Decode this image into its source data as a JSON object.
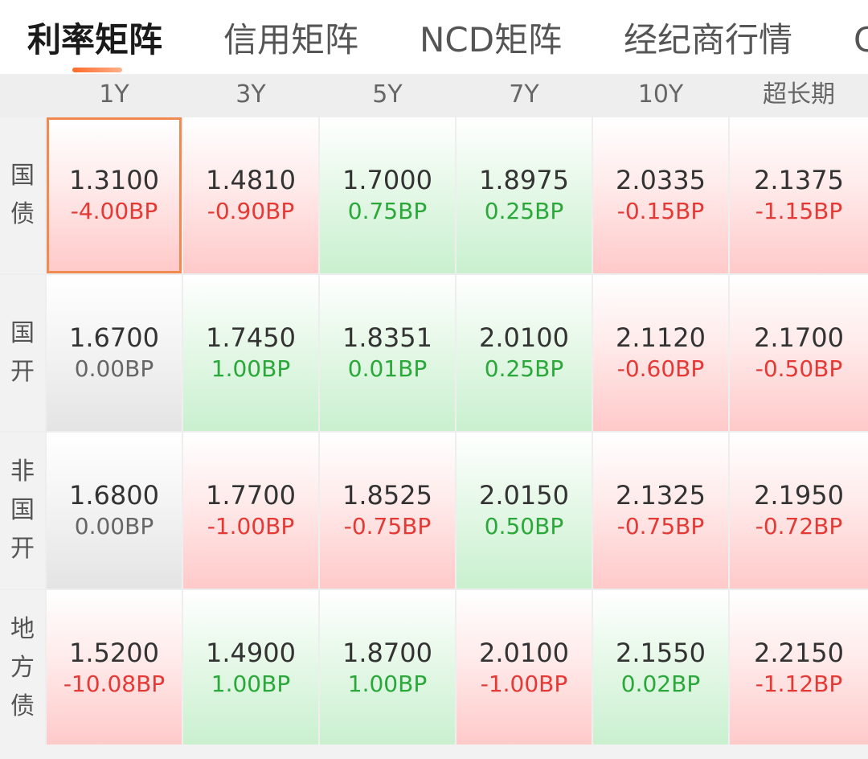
{
  "tabs": [
    {
      "label": "利率矩阵",
      "active": true
    },
    {
      "label": "信用矩阵",
      "active": false
    },
    {
      "label": "NCD矩阵",
      "active": false
    },
    {
      "label": "经纪商行情",
      "active": false
    },
    {
      "label": "C",
      "active": false
    }
  ],
  "matrix": {
    "columns": [
      "1Y",
      "3Y",
      "5Y",
      "7Y",
      "10Y",
      "超长期"
    ],
    "rows": [
      {
        "label": "国债",
        "cells": [
          {
            "rate": "1.3100",
            "change": "-4.00BP",
            "trend": "down",
            "selected": true
          },
          {
            "rate": "1.4810",
            "change": "-0.90BP",
            "trend": "down"
          },
          {
            "rate": "1.7000",
            "change": "0.75BP",
            "trend": "up"
          },
          {
            "rate": "1.8975",
            "change": "0.25BP",
            "trend": "up"
          },
          {
            "rate": "2.0335",
            "change": "-0.15BP",
            "trend": "down"
          },
          {
            "rate": "2.1375",
            "change": "-1.15BP",
            "trend": "down"
          }
        ]
      },
      {
        "label": "国开",
        "cells": [
          {
            "rate": "1.6700",
            "change": "0.00BP",
            "trend": "flat"
          },
          {
            "rate": "1.7450",
            "change": "1.00BP",
            "trend": "up"
          },
          {
            "rate": "1.8351",
            "change": "0.01BP",
            "trend": "up"
          },
          {
            "rate": "2.0100",
            "change": "0.25BP",
            "trend": "up"
          },
          {
            "rate": "2.1120",
            "change": "-0.60BP",
            "trend": "down"
          },
          {
            "rate": "2.1700",
            "change": "-0.50BP",
            "trend": "down"
          }
        ]
      },
      {
        "label": "非国开",
        "cells": [
          {
            "rate": "1.6800",
            "change": "0.00BP",
            "trend": "flat"
          },
          {
            "rate": "1.7700",
            "change": "-1.00BP",
            "trend": "down"
          },
          {
            "rate": "1.8525",
            "change": "-0.75BP",
            "trend": "down"
          },
          {
            "rate": "2.0150",
            "change": "0.50BP",
            "trend": "up"
          },
          {
            "rate": "2.1325",
            "change": "-0.75BP",
            "trend": "down"
          },
          {
            "rate": "2.1950",
            "change": "-0.72BP",
            "trend": "down"
          }
        ]
      },
      {
        "label": "地方债",
        "cells": [
          {
            "rate": "1.5200",
            "change": "-10.08BP",
            "trend": "down"
          },
          {
            "rate": "1.4900",
            "change": "1.00BP",
            "trend": "up"
          },
          {
            "rate": "1.8700",
            "change": "1.00BP",
            "trend": "up"
          },
          {
            "rate": "2.0100",
            "change": "-1.00BP",
            "trend": "down"
          },
          {
            "rate": "2.1550",
            "change": "0.02BP",
            "trend": "up"
          },
          {
            "rate": "2.2150",
            "change": "-1.12BP",
            "trend": "down"
          }
        ]
      }
    ]
  }
}
